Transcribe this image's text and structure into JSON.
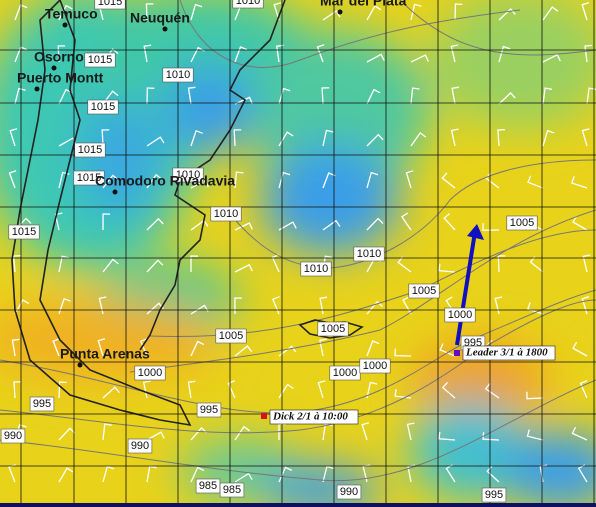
{
  "cities": [
    "Temuco",
    "Neuquén",
    "Mar del Plata",
    "Osorno",
    "Puerto Montt",
    "Comodoro Rivadavia",
    "Punta Arenas"
  ],
  "isobar_labels": [
    "1015",
    "1010",
    "1015",
    "1010",
    "1015",
    "1015",
    "1010",
    "1015",
    "1010",
    "1015",
    "1010",
    "1010",
    "1005",
    "1005",
    "1005",
    "1005",
    "1000",
    "995",
    "1000",
    "1000",
    "1000",
    "995",
    "995",
    "990",
    "990",
    "985",
    "985",
    "990",
    "995"
  ],
  "annotations": {
    "dick": "Dick 2/1 à 10:00",
    "leader": "Leader 3/1 à 1800"
  }
}
